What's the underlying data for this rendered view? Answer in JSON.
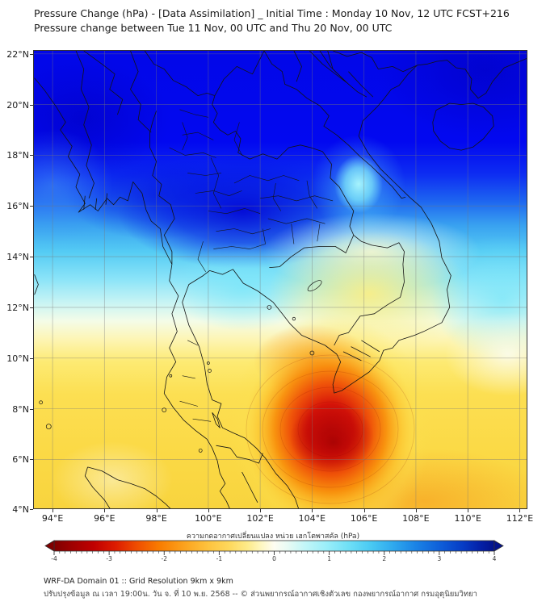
{
  "header": {
    "title_line1": "Pressure Change (hPa) - [Data Assimilation] _ Initial Time : Monday 10 Nov, 12 UTC FCST+216",
    "title_line2": "Pressure change between Tue 11 Nov, 00 UTC and Thu 20 Nov, 00 UTC"
  },
  "map": {
    "x_tick_labels": [
      "94°E",
      "96°E",
      "98°E",
      "100°E",
      "102°E",
      "104°E",
      "106°E",
      "108°E",
      "110°E",
      "112°E"
    ],
    "y_tick_labels": [
      "22°N",
      "20°N",
      "18°N",
      "16°N",
      "14°N",
      "12°N",
      "10°N",
      "8°N",
      "6°N",
      "4°N"
    ],
    "field": {
      "type": "filled-contour",
      "variable": "pressure change (hPa)",
      "positive_region": {
        "approx_location": "north of ~14°N (Myanmar, N-Thailand, Laos, N-Vietnam)",
        "approx_value_hPa": "+3 to +4"
      },
      "negative_center": {
        "approx_location": "104.6°E, 7.2°N (Gulf of Thailand / South China Sea)",
        "approx_value_hPa": "-3.5 to -4"
      }
    }
  },
  "colorbar": {
    "label": "ความกดอากาศเปลี่ยนแปลง หน่วย เฮกโตพาสคัล (hPa)",
    "tick_labels": [
      "-4",
      "-3",
      "-2",
      "-1",
      "0",
      "1",
      "2",
      "3",
      "4"
    ],
    "negative_end_color": "#7f0000",
    "zero_color": "#fdfdf0",
    "positive_end_color": "#03128b"
  },
  "footer": {
    "line1": "WRF-DA Domain 01 :: Grid Resolution 9km x 9km",
    "line2": "ปรับปรุงข้อมูล ณ เวลา 19:00น. วัน จ. ที่ 10 พ.ย. 2568 -- © ส่วนพยากรณ์อากาศเชิงตัวเลข กองพยากรณ์อากาศ กรมอุตุนิยมวิทยา"
  }
}
